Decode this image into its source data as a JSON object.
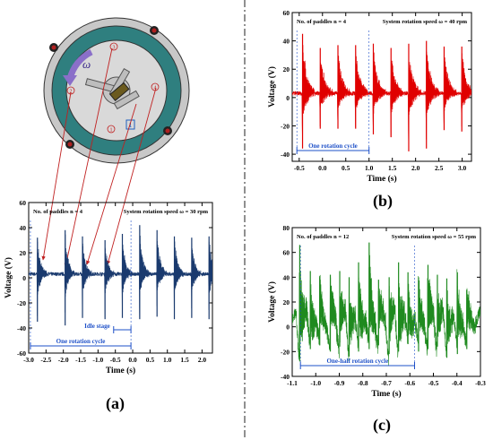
{
  "panel_labels": {
    "a": "(a)",
    "b": "(b)",
    "c": "(c)"
  },
  "device": {
    "omega_symbol": "ω",
    "paddle_markers": [
      "1",
      "2",
      "3",
      "4"
    ],
    "box_label": "1"
  },
  "chart_data": [
    {
      "id": "a",
      "type": "line",
      "annotation_left": "No. of paddles  n = 4",
      "annotation_right": "System rotation speed  ω = 30 rpm",
      "xlabel": "Time (s)",
      "ylabel": "Voltage (V)",
      "xlim": [
        -3.0,
        2.3
      ],
      "ylim": [
        -60,
        60
      ],
      "xticks": [
        -3.0,
        -2.5,
        -2.0,
        -1.5,
        -1.0,
        -0.5,
        0.0,
        0.5,
        1.0,
        1.5,
        2.0
      ],
      "xtick_labels": [
        "-3.0",
        "-2.5",
        "-2.0",
        "-1.5",
        "-1.0",
        "-0.5",
        "0.0",
        "0.5",
        "1.0",
        "1.5",
        "2.0"
      ],
      "yticks": [
        -60,
        -40,
        -20,
        0,
        20,
        40,
        60
      ],
      "ytick_labels": [
        "-60",
        "-40",
        "-20",
        "0",
        "20",
        "40",
        "60"
      ],
      "color": "#1a3a6e",
      "pulse_times": [
        -2.75,
        -1.95,
        -1.45,
        -0.8,
        -0.3,
        0.2,
        0.7,
        1.2,
        1.7,
        2.2
      ],
      "pulse_peaks": [
        32,
        38,
        33,
        30,
        35,
        42,
        38,
        33,
        32,
        33
      ],
      "pulse_troughs": [
        -35,
        -38,
        -32,
        -33,
        -32,
        -33,
        -31,
        -33,
        -32,
        -33
      ],
      "baseline": 3,
      "annotations": {
        "idle_stage": "Idle stage",
        "rotation_cycle": "One rotation cycle",
        "idle_range": [
          -0.55,
          -0.05
        ],
        "cycle_range": [
          -2.95,
          -0.05
        ]
      }
    },
    {
      "id": "b",
      "type": "line",
      "annotation_left": "No. of paddles  n = 4",
      "annotation_right": "System rotation speed  ω = 40 rpm",
      "xlabel": "Time (s)",
      "ylabel": "Voltage (V)",
      "xlim": [
        -0.65,
        3.2
      ],
      "ylim": [
        -45,
        60
      ],
      "xticks": [
        -0.5,
        0.0,
        0.5,
        1.0,
        1.5,
        2.0,
        2.5,
        3.0
      ],
      "xtick_labels": [
        "-0.5",
        "0.0",
        "0.5",
        "1.0",
        "1.5",
        "2.0",
        "2.5",
        "3.0"
      ],
      "yticks": [
        -40,
        -20,
        0,
        20,
        40,
        60
      ],
      "ytick_labels": [
        "-40",
        "-20",
        "0",
        "20",
        "40",
        "60"
      ],
      "color": "#e00000",
      "pulse_times": [
        -0.43,
        -0.05,
        0.33,
        0.71,
        1.09,
        1.47,
        1.85,
        2.23,
        2.61,
        2.99
      ],
      "pulse_peaks": [
        45,
        35,
        37,
        37,
        38,
        35,
        38,
        40,
        36,
        36
      ],
      "pulse_troughs": [
        -36,
        -22,
        -22,
        -22,
        -26,
        -28,
        -38,
        -36,
        -23,
        -24
      ],
      "baseline": 3,
      "annotations": {
        "rotation_cycle": "One rotation cycle",
        "cycle_range": [
          -0.55,
          1.0
        ]
      }
    },
    {
      "id": "c",
      "type": "line",
      "annotation_left": "No. of paddles  n = 12",
      "annotation_right": "System rotation speed  ω = 55 rpm",
      "xlabel": "Time (s)",
      "ylabel": "Voltage (V)",
      "xlim": [
        -1.1,
        -0.3
      ],
      "ylim": [
        -40,
        80
      ],
      "xticks": [
        -1.1,
        -1.0,
        -0.9,
        -0.8,
        -0.7,
        -0.6,
        -0.5,
        -0.4,
        -0.3
      ],
      "xtick_labels": [
        "-1.1",
        "-1.0",
        "-0.9",
        "-0.8",
        "-0.7",
        "-0.6",
        "-0.5",
        "-0.4",
        "-0.3"
      ],
      "yticks": [
        -40,
        -20,
        0,
        20,
        40,
        60,
        80
      ],
      "ytick_labels": [
        "-40",
        "-20",
        "0",
        "20",
        "40",
        "60",
        "80"
      ],
      "color": "#1f8a1f",
      "pulse_times": [
        -1.07,
        -1.025,
        -0.985,
        -0.94,
        -0.9,
        -0.86,
        -0.82,
        -0.775,
        -0.735,
        -0.69,
        -0.65,
        -0.61,
        -0.565,
        -0.525,
        -0.485,
        -0.445,
        -0.4,
        -0.36
      ],
      "pulse_peaks": [
        66,
        45,
        40,
        42,
        45,
        40,
        52,
        68,
        38,
        40,
        52,
        44,
        40,
        50,
        42,
        39,
        44,
        30
      ],
      "pulse_troughs": [
        -28,
        -18,
        -15,
        -20,
        -16,
        -24,
        -20,
        -18,
        -15,
        -22,
        -20,
        -14,
        -20,
        -18,
        -16,
        -25,
        -22,
        -18
      ],
      "baseline": 5,
      "annotations": {
        "rotation_cycle": "One-half rotation cycle",
        "cycle_range": [
          -1.065,
          -0.58
        ]
      }
    }
  ]
}
